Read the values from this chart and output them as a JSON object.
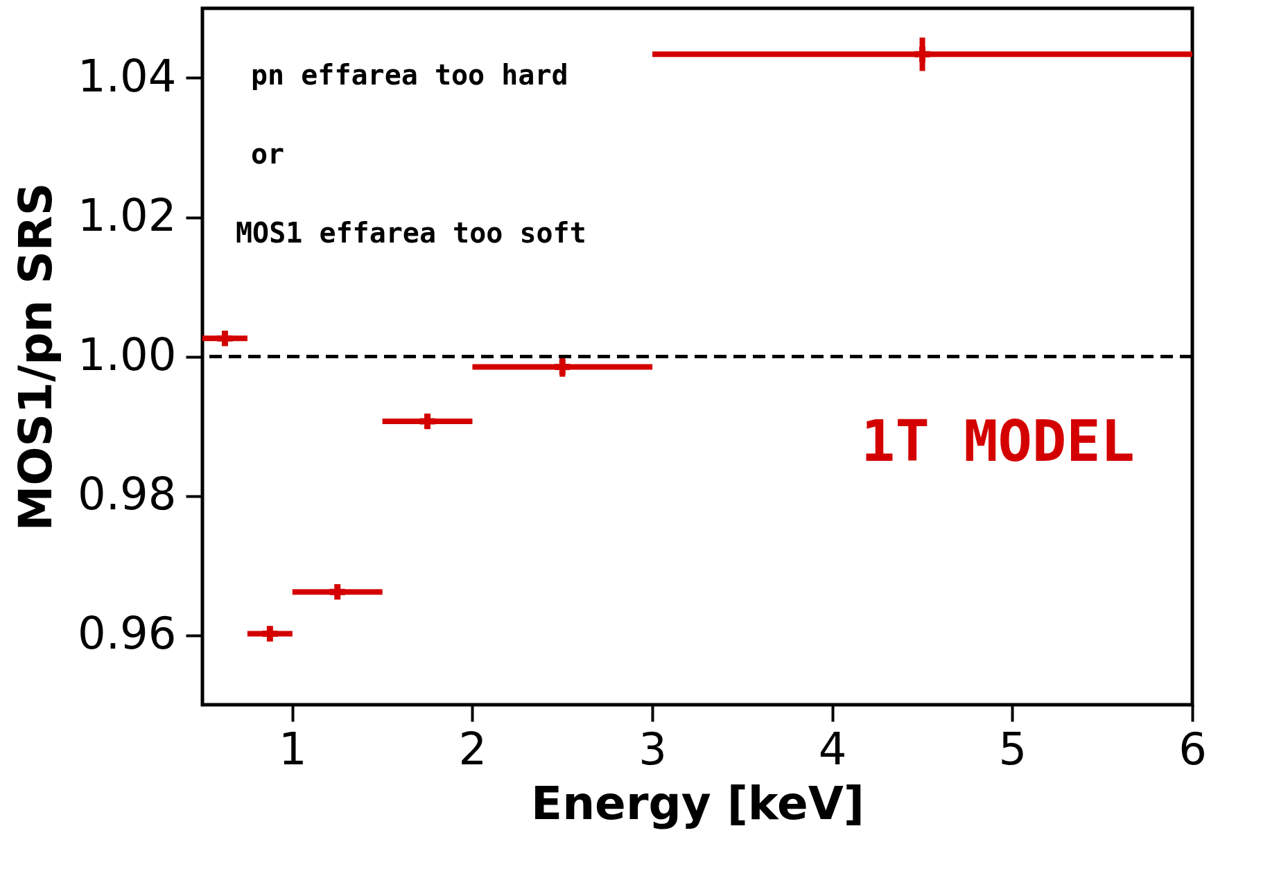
{
  "chart_data": {
    "type": "scatter",
    "xlabel": "Energy [keV]",
    "ylabel": "MOS1/pn SRS",
    "x": [
      0.625,
      0.875,
      1.25,
      1.75,
      2.5,
      4.5
    ],
    "series": [
      {
        "color": "#d40000",
        "values": [
          1.0026,
          0.9602,
          0.9662,
          0.9907,
          0.9985,
          1.0434
        ],
        "errors": [
          0.0002,
          0.0002,
          0.0001,
          0.0003,
          0.0014,
          0.0024
        ],
        "xerrors": [
          [
            0.5,
            0.75
          ],
          [
            0.75,
            1.0
          ],
          [
            1.0,
            1.5
          ],
          [
            1.5,
            2.0
          ],
          [
            2.0,
            3.0
          ],
          [
            3.0,
            6.0
          ]
        ]
      }
    ],
    "xlim": [
      0.5,
      6
    ],
    "ylim": [
      0.95,
      1.05
    ],
    "xticks": [
      1,
      2,
      3,
      4,
      5,
      6
    ],
    "yticks": [
      {
        "value": 0.96,
        "label": "0.96"
      },
      {
        "value": 0.98,
        "label": "0.98"
      },
      {
        "value": 1.0,
        "label": "1.00"
      },
      {
        "value": 1.02,
        "label": "1.02"
      },
      {
        "value": 1.04,
        "label": "1.04"
      }
    ],
    "ref_lines": [
      {
        "axis": "y",
        "value": 1.0,
        "color": "#000000",
        "line_style": "dashed"
      }
    ],
    "annotations": [
      "pn effarea too hard",
      "or",
      "MOS1 effarea too soft",
      "1T MODEL"
    ],
    "marker": "cross",
    "grid": false
  }
}
